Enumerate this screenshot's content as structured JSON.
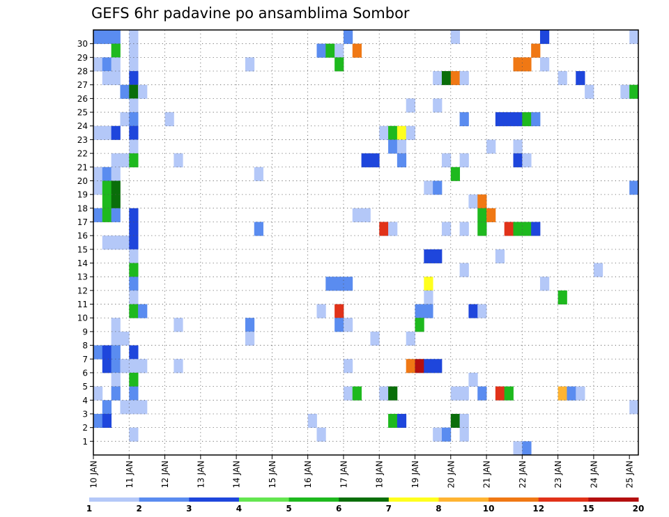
{
  "chart_data": {
    "type": "heatmap",
    "title": "GEFS 6hr padavine po ansamblima Sombor",
    "x_tick_labels": [
      "10 JAN",
      "11 JAN",
      "12 JAN",
      "13 JAN",
      "14 JAN",
      "15 JAN",
      "16 JAN",
      "17 JAN",
      "18 JAN",
      "19 JAN",
      "20 JAN",
      "21 JAN",
      "22 JAN",
      "23 JAN",
      "24 JAN",
      "25 JAN"
    ],
    "y_tick_labels": [
      1,
      2,
      3,
      4,
      5,
      6,
      7,
      8,
      9,
      10,
      11,
      12,
      13,
      14,
      15,
      16,
      17,
      18,
      19,
      20,
      21,
      22,
      23,
      24,
      25,
      26,
      27,
      28,
      29,
      30
    ],
    "grid": true,
    "time_step_hours": 6,
    "colorbar": {
      "labels": [
        "1",
        "2",
        "3",
        "4",
        "5",
        "6",
        "7",
        "8",
        "10",
        "12",
        "15",
        "20"
      ],
      "colors": [
        "#b4c8f8",
        "#5a8cf0",
        "#1e46dc",
        "#64e650",
        "#1eb91e",
        "#0a6e0a",
        "#ffff1e",
        "#ffb432",
        "#f07814",
        "#e13219",
        "#b40f0f",
        "#6e0505"
      ]
    },
    "cells": [
      [
        30,
        0,
        2
      ],
      [
        30,
        1,
        2
      ],
      [
        30,
        2,
        2
      ],
      [
        30,
        4,
        1
      ],
      [
        30,
        28,
        2
      ],
      [
        30,
        40,
        1
      ],
      [
        30,
        50,
        3
      ],
      [
        30,
        60,
        1
      ],
      [
        29,
        2,
        5
      ],
      [
        29,
        4,
        1
      ],
      [
        29,
        25,
        2
      ],
      [
        29,
        26,
        5
      ],
      [
        29,
        27,
        1
      ],
      [
        29,
        29,
        10
      ],
      [
        29,
        49,
        10
      ],
      [
        28,
        0,
        1
      ],
      [
        28,
        1,
        2
      ],
      [
        28,
        2,
        1
      ],
      [
        28,
        4,
        1
      ],
      [
        28,
        17,
        1
      ],
      [
        28,
        27,
        5
      ],
      [
        28,
        47,
        10
      ],
      [
        28,
        48,
        10
      ],
      [
        28,
        50,
        1
      ],
      [
        27,
        1,
        1
      ],
      [
        27,
        2,
        1
      ],
      [
        27,
        4,
        3
      ],
      [
        27,
        38,
        1
      ],
      [
        27,
        39,
        6
      ],
      [
        27,
        40,
        10
      ],
      [
        27,
        41,
        1
      ],
      [
        27,
        52,
        1
      ],
      [
        27,
        54,
        3
      ],
      [
        26,
        3,
        2
      ],
      [
        26,
        4,
        6
      ],
      [
        26,
        5,
        1
      ],
      [
        26,
        55,
        1
      ],
      [
        26,
        59,
        1
      ],
      [
        26,
        60,
        5
      ],
      [
        25,
        4,
        1
      ],
      [
        25,
        35,
        1
      ],
      [
        25,
        38,
        1
      ],
      [
        24,
        3,
        1
      ],
      [
        24,
        4,
        2
      ],
      [
        24,
        8,
        1
      ],
      [
        24,
        41,
        2
      ],
      [
        24,
        45,
        3
      ],
      [
        24,
        46,
        3
      ],
      [
        24,
        47,
        3
      ],
      [
        24,
        48,
        5
      ],
      [
        24,
        49,
        2
      ],
      [
        23,
        0,
        1
      ],
      [
        23,
        1,
        1
      ],
      [
        23,
        2,
        3
      ],
      [
        23,
        4,
        3
      ],
      [
        23,
        32,
        1
      ],
      [
        23,
        33,
        5
      ],
      [
        23,
        34,
        7
      ],
      [
        23,
        35,
        1
      ],
      [
        22,
        4,
        1
      ],
      [
        22,
        33,
        2
      ],
      [
        22,
        34,
        1
      ],
      [
        22,
        44,
        1
      ],
      [
        22,
        47,
        1
      ],
      [
        21,
        2,
        1
      ],
      [
        21,
        3,
        1
      ],
      [
        21,
        4,
        5
      ],
      [
        21,
        9,
        1
      ],
      [
        21,
        30,
        3
      ],
      [
        21,
        31,
        3
      ],
      [
        21,
        34,
        2
      ],
      [
        21,
        39,
        1
      ],
      [
        21,
        41,
        1
      ],
      [
        21,
        47,
        3
      ],
      [
        21,
        48,
        1
      ],
      [
        20,
        0,
        1
      ],
      [
        20,
        1,
        2
      ],
      [
        20,
        2,
        1
      ],
      [
        20,
        18,
        1
      ],
      [
        20,
        40,
        5
      ],
      [
        19,
        0,
        1
      ],
      [
        19,
        1,
        5
      ],
      [
        19,
        2,
        6
      ],
      [
        19,
        37,
        1
      ],
      [
        19,
        38,
        2
      ],
      [
        19,
        60,
        2
      ],
      [
        18,
        1,
        5
      ],
      [
        18,
        2,
        6
      ],
      [
        18,
        42,
        1
      ],
      [
        18,
        43,
        10
      ],
      [
        17,
        0,
        2
      ],
      [
        17,
        1,
        5
      ],
      [
        17,
        2,
        2
      ],
      [
        17,
        4,
        3
      ],
      [
        17,
        29,
        1
      ],
      [
        17,
        30,
        1
      ],
      [
        17,
        43,
        5
      ],
      [
        17,
        44,
        10
      ],
      [
        16,
        4,
        3
      ],
      [
        16,
        18,
        2
      ],
      [
        16,
        32,
        12
      ],
      [
        16,
        33,
        1
      ],
      [
        16,
        39,
        1
      ],
      [
        16,
        41,
        1
      ],
      [
        16,
        43,
        5
      ],
      [
        16,
        46,
        12
      ],
      [
        16,
        47,
        5
      ],
      [
        16,
        48,
        5
      ],
      [
        16,
        49,
        3
      ],
      [
        15,
        1,
        1
      ],
      [
        15,
        2,
        1
      ],
      [
        15,
        3,
        1
      ],
      [
        15,
        4,
        3
      ],
      [
        14,
        4,
        1
      ],
      [
        14,
        37,
        3
      ],
      [
        14,
        38,
        3
      ],
      [
        14,
        45,
        1
      ],
      [
        13,
        4,
        5
      ],
      [
        13,
        41,
        1
      ],
      [
        13,
        56,
        1
      ],
      [
        12,
        4,
        2
      ],
      [
        12,
        26,
        2
      ],
      [
        12,
        27,
        2
      ],
      [
        12,
        28,
        2
      ],
      [
        12,
        37,
        7
      ],
      [
        12,
        50,
        1
      ],
      [
        11,
        4,
        1
      ],
      [
        11,
        37,
        1
      ],
      [
        11,
        52,
        5
      ],
      [
        10,
        4,
        5
      ],
      [
        10,
        5,
        2
      ],
      [
        10,
        25,
        1
      ],
      [
        10,
        27,
        12
      ],
      [
        10,
        36,
        2
      ],
      [
        10,
        37,
        2
      ],
      [
        10,
        42,
        3
      ],
      [
        10,
        43,
        1
      ],
      [
        9,
        2,
        1
      ],
      [
        9,
        9,
        1
      ],
      [
        9,
        17,
        2
      ],
      [
        9,
        27,
        2
      ],
      [
        9,
        28,
        1
      ],
      [
        9,
        36,
        5
      ],
      [
        8,
        2,
        1
      ],
      [
        8,
        3,
        1
      ],
      [
        8,
        17,
        1
      ],
      [
        8,
        31,
        1
      ],
      [
        8,
        35,
        1
      ],
      [
        7,
        0,
        2
      ],
      [
        7,
        1,
        3
      ],
      [
        7,
        2,
        2
      ],
      [
        7,
        4,
        3
      ],
      [
        6,
        1,
        3
      ],
      [
        6,
        2,
        2
      ],
      [
        6,
        3,
        1
      ],
      [
        6,
        4,
        1
      ],
      [
        6,
        5,
        1
      ],
      [
        6,
        9,
        1
      ],
      [
        6,
        28,
        1
      ],
      [
        6,
        35,
        10
      ],
      [
        6,
        36,
        15
      ],
      [
        6,
        37,
        3
      ],
      [
        6,
        38,
        3
      ],
      [
        5,
        2,
        1
      ],
      [
        5,
        4,
        5
      ],
      [
        5,
        42,
        1
      ],
      [
        4,
        0,
        1
      ],
      [
        4,
        2,
        2
      ],
      [
        4,
        4,
        2
      ],
      [
        4,
        28,
        1
      ],
      [
        4,
        29,
        5
      ],
      [
        4,
        32,
        1
      ],
      [
        4,
        33,
        6
      ],
      [
        4,
        40,
        1
      ],
      [
        4,
        41,
        1
      ],
      [
        4,
        43,
        2
      ],
      [
        4,
        45,
        12
      ],
      [
        4,
        46,
        5
      ],
      [
        4,
        52,
        8
      ],
      [
        4,
        53,
        2
      ],
      [
        4,
        54,
        1
      ],
      [
        3,
        1,
        2
      ],
      [
        3,
        3,
        1
      ],
      [
        3,
        4,
        1
      ],
      [
        3,
        5,
        1
      ],
      [
        3,
        60,
        1
      ],
      [
        2,
        0,
        2
      ],
      [
        2,
        1,
        3
      ],
      [
        2,
        24,
        1
      ],
      [
        2,
        33,
        5
      ],
      [
        2,
        34,
        3
      ],
      [
        2,
        40,
        6
      ],
      [
        2,
        41,
        1
      ],
      [
        1,
        4,
        1
      ],
      [
        1,
        25,
        1
      ],
      [
        1,
        38,
        1
      ],
      [
        1,
        39,
        2
      ],
      [
        1,
        41,
        1
      ],
      [
        0,
        47,
        1
      ],
      [
        0,
        48,
        2
      ]
    ]
  }
}
